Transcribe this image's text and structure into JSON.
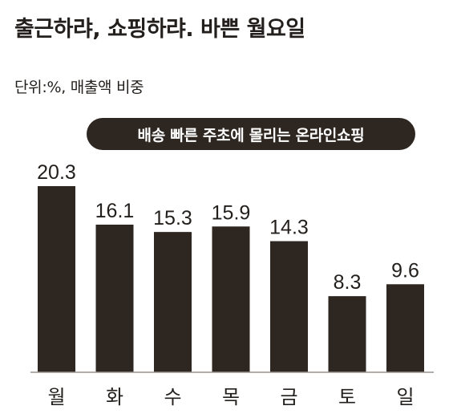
{
  "title": "출근하랴, 쇼핑하랴. 바쁜 월요일",
  "unit_note": "단위:%, 매출액 비중",
  "banner": "배송 빠른 주초에 몰리는 온라인쇼핑",
  "colors": {
    "bar": "#2e2620",
    "banner_bg": "#2e2620",
    "banner_text": "#ffffff",
    "axis": "#9a948e",
    "text": "#231f1c"
  },
  "chart_data": {
    "type": "bar",
    "title": "출근하랴, 쇼핑하랴. 바쁜 월요일",
    "subtitle": "단위:%, 매출액 비중",
    "annotation": "배송 빠른 주초에 몰리는 온라인쇼핑",
    "categories": [
      "월",
      "화",
      "수",
      "목",
      "금",
      "토",
      "일"
    ],
    "values": [
      20.3,
      16.1,
      15.3,
      15.9,
      14.3,
      8.3,
      9.6
    ],
    "value_labels": [
      "20.3",
      "16.1",
      "15.3",
      "15.9",
      "14.3",
      "8.3",
      "9.6"
    ],
    "xlabel": "",
    "ylabel": "",
    "ylim": [
      0,
      20.3
    ],
    "grid": false,
    "legend": "none"
  }
}
